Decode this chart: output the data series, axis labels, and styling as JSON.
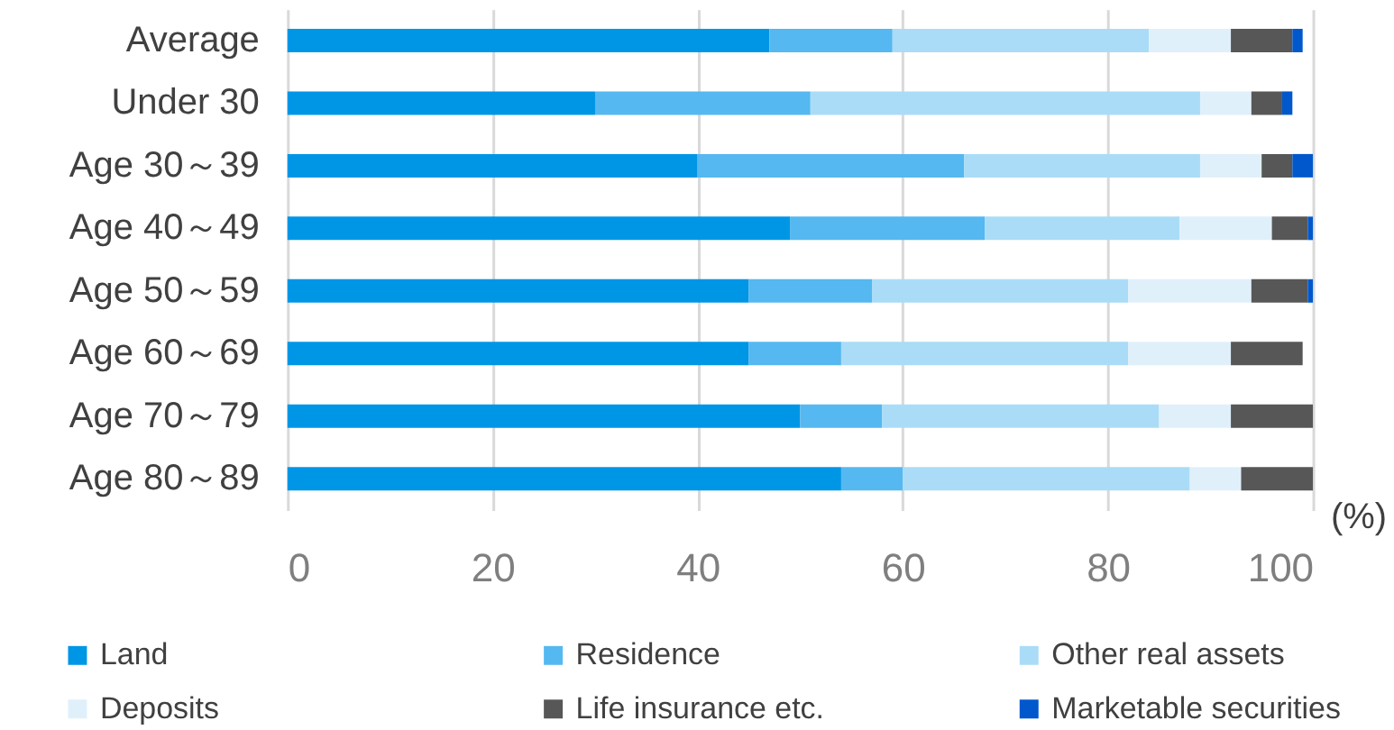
{
  "chart_data": {
    "type": "bar",
    "orientation": "horizontal",
    "stacked": true,
    "categories": [
      "Average",
      "Under 30",
      "Age 30～39",
      "Age 40～49",
      "Age 50～59",
      "Age 60～69",
      "Age 70～79",
      "Age 80～89"
    ],
    "series": [
      {
        "name": "Land",
        "color": "#0096e6",
        "values": [
          47,
          30,
          40,
          49,
          45,
          45,
          50,
          54
        ]
      },
      {
        "name": "Residence",
        "color": "#55b8f0",
        "values": [
          12,
          21,
          26,
          19,
          12,
          9,
          8,
          6
        ]
      },
      {
        "name": "Other real assets",
        "color": "#aadcf7",
        "values": [
          25,
          38,
          23,
          19,
          25,
          28,
          27,
          28
        ]
      },
      {
        "name": "Deposits",
        "color": "#e0f0fb",
        "values": [
          8,
          5,
          6,
          9,
          12,
          10,
          7,
          5
        ]
      },
      {
        "name": "Life insurance etc.",
        "color": "#575757",
        "values": [
          6,
          3,
          3,
          3.5,
          5.5,
          7,
          8,
          7
        ]
      },
      {
        "name": "Marketable securities",
        "color": "#0058cc",
        "values": [
          1,
          1,
          2,
          0.5,
          0.5,
          0,
          0,
          0
        ]
      }
    ],
    "xlim": [
      0,
      100
    ],
    "xticks": [
      0,
      20,
      40,
      60,
      80,
      100
    ],
    "grid": "x",
    "legend": "bottom",
    "annotations": [
      "(%)"
    ]
  }
}
